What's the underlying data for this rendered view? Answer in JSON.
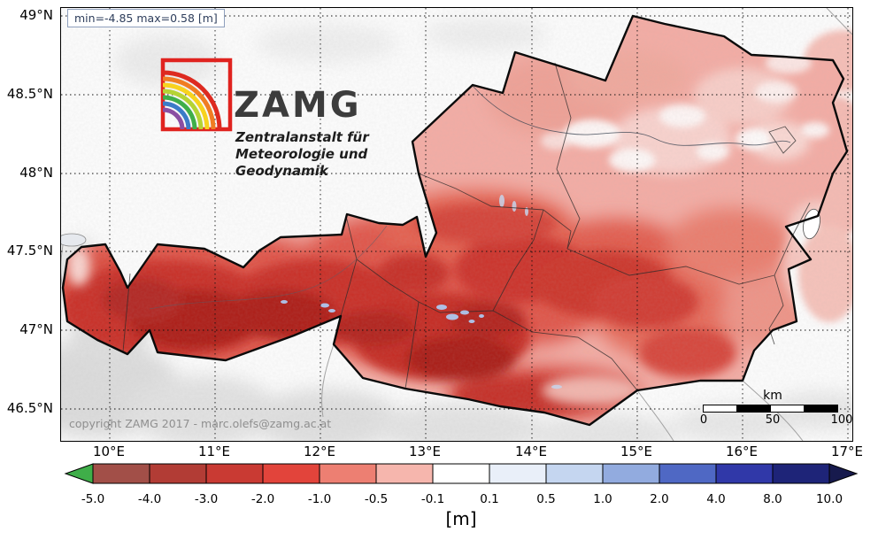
{
  "annotation": {
    "text": "min=-4.85 max=0.58 [m]"
  },
  "logo": {
    "title": "ZAMG",
    "subtitle_line1": "Zentralanstalt für",
    "subtitle_line2": "Meteorologie und",
    "subtitle_line3": "Geodynamik"
  },
  "copyright": "copyright ZAMG 2017 - marc.olefs@zamg.ac.at",
  "axes": {
    "lat_ticks": [
      "49°N",
      "48.5°N",
      "48°N",
      "47.5°N",
      "47°N",
      "46.5°N"
    ],
    "lon_ticks": [
      "10°E",
      "11°E",
      "12°E",
      "13°E",
      "14°E",
      "15°E",
      "16°E",
      "17°E"
    ]
  },
  "scalebar": {
    "unit": "km",
    "tick_labels": [
      "0",
      "50",
      "100"
    ]
  },
  "colorbar": {
    "unit_label": "[m]",
    "tick_labels": [
      "-5.0",
      "-4.0",
      "-3.0",
      "-2.0",
      "-1.0",
      "-0.5",
      "-0.1",
      "0.1",
      "0.5",
      "1.0",
      "2.0",
      "4.0",
      "8.0",
      "10.0"
    ],
    "segment_colors": [
      "#a24f48",
      "#b23c35",
      "#c93a33",
      "#e2443b",
      "#ed7f72",
      "#f6b6ad",
      "#ffffff",
      "#e9eff9",
      "#c5d6f0",
      "#92abdf",
      "#4f68c4",
      "#3038a8",
      "#1e2478"
    ],
    "under_arrow_color": "#3fae49",
    "over_arrow_color": "#171a4d"
  }
}
